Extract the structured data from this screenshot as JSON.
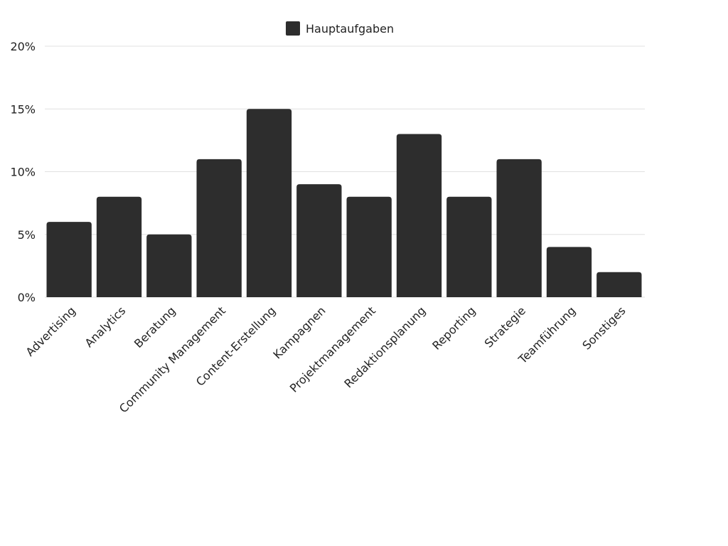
{
  "chart_data": {
    "type": "bar",
    "categories": [
      "Advertising",
      "Analytics",
      "Beratung",
      "Community Management",
      "Content-Erstellung",
      "Kampagnen",
      "Projektmanagement",
      "Redaktionsplanung",
      "Reporting",
      "Strategie",
      "Teamführung",
      "Sonstiges"
    ],
    "series": [
      {
        "name": "Hauptaufgaben",
        "values": [
          6,
          8,
          5,
          11,
          15,
          9,
          8,
          13,
          8,
          11,
          4,
          2
        ],
        "color": "#2d2d2d"
      }
    ],
    "y_ticks": [
      "0%",
      "5%",
      "10%",
      "15%",
      "20%"
    ],
    "ylim": [
      0,
      20
    ],
    "unit": "%",
    "grid": true,
    "legend_position": "top-center",
    "title": "",
    "xlabel": "",
    "ylabel": ""
  }
}
